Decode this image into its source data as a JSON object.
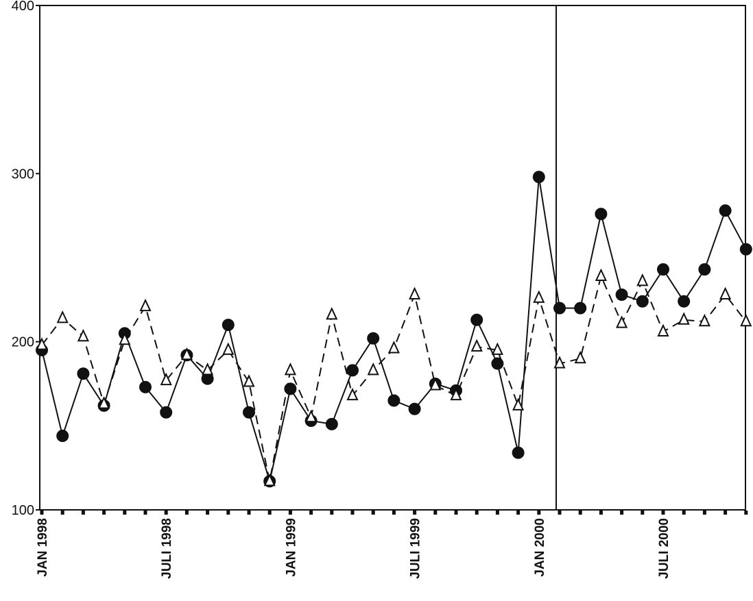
{
  "chart_data": {
    "type": "line",
    "title": "",
    "xlabel": "",
    "ylabel": "",
    "ylim": [
      100,
      400
    ],
    "yticks": [
      100,
      200,
      300,
      400
    ],
    "x_tick_labels": [
      "JAN 1998",
      "JULI 1998",
      "JAN 1999",
      "JULI 1999",
      "JAN 2000",
      "JULI 2000"
    ],
    "x_tick_months": [
      "1998-01",
      "1998-07",
      "1999-01",
      "1999-07",
      "2000-01",
      "2000-07"
    ],
    "x_range": [
      "1998-01",
      "2000-11"
    ],
    "vertical_marker": "2000-02",
    "grid": false,
    "legend": "none",
    "colors": {
      "line": "#111111",
      "marker_fill": "#111111",
      "triangle_fill": "#ffffff"
    },
    "x": [
      "1998-01",
      "1998-02",
      "1998-03",
      "1998-04",
      "1998-05",
      "1998-06",
      "1998-07",
      "1998-08",
      "1998-09",
      "1998-10",
      "1998-11",
      "1998-12",
      "1999-01",
      "1999-02",
      "1999-03",
      "1999-04",
      "1999-05",
      "1999-06",
      "1999-07",
      "1999-08",
      "1999-09",
      "1999-10",
      "1999-11",
      "1999-12",
      "2000-01",
      "2000-02",
      "2000-03",
      "2000-04",
      "2000-05",
      "2000-06",
      "2000-07",
      "2000-08",
      "2000-09",
      "2000-10",
      "2000-11"
    ],
    "series": [
      {
        "style": "solid-circle",
        "values": [
          195,
          144,
          181,
          162,
          205,
          173,
          158,
          192,
          178,
          210,
          158,
          117,
          172,
          153,
          151,
          183,
          202,
          165,
          160,
          175,
          171,
          213,
          187,
          134,
          298,
          220,
          220,
          276,
          228,
          224,
          243,
          224,
          243,
          278,
          255
        ]
      },
      {
        "style": "dashed-triangle",
        "values": [
          198,
          214,
          203,
          163,
          201,
          221,
          177,
          192,
          183,
          195,
          176,
          117,
          183,
          155,
          216,
          168,
          183,
          196,
          228,
          174,
          168,
          197,
          195,
          162,
          226,
          187,
          190,
          239,
          211,
          236,
          206,
          213,
          212,
          228,
          212
        ]
      }
    ]
  }
}
